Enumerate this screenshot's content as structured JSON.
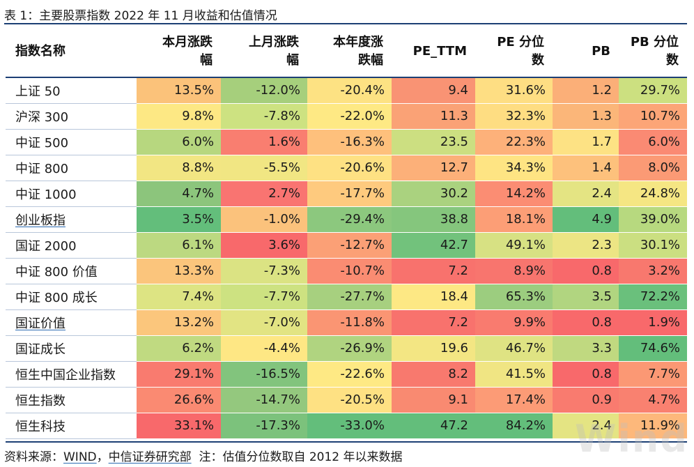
{
  "title": "表 1：主要股票指数 2022 年 11 月收益和估值情况",
  "headers": {
    "name": "指数名称",
    "monthly": [
      "本月涨跌",
      "幅"
    ],
    "last_month": [
      "上月涨跌",
      "幅"
    ],
    "ytd": [
      "本年度涨",
      "跌幅"
    ],
    "pe_ttm": "PE_TTM",
    "pe_pct": [
      "PE 分位",
      "数"
    ],
    "pb": "PB",
    "pb_pct": [
      "PB 分位",
      "数"
    ]
  },
  "rows": [
    {
      "name": "上证 50",
      "link": false,
      "cells": [
        "13.5%",
        "-12.0%",
        "-20.4%",
        "9.4",
        "31.6%",
        "1.2",
        "29.7%"
      ],
      "colors": [
        "#fbc27a",
        "#a6cf7c",
        "#fde283",
        "#f99374",
        "#fede83",
        "#fbaf78",
        "#cce080"
      ]
    },
    {
      "name": "沪深 300",
      "link": false,
      "cells": [
        "9.8%",
        "-7.8%",
        "-22.0%",
        "11.3",
        "32.3%",
        "1.3",
        "10.7%"
      ],
      "colors": [
        "#fde884",
        "#cde281",
        "#fee984",
        "#faa276",
        "#fedd82",
        "#fbb679",
        "#fca577"
      ]
    },
    {
      "name": "中证 500",
      "link": false,
      "cells": [
        "6.0%",
        "1.6%",
        "-16.3%",
        "23.5",
        "22.3%",
        "1.7",
        "6.0%"
      ],
      "colors": [
        "#b7d77f",
        "#f97e70",
        "#fec07c",
        "#ccdf81",
        "#fdb17a",
        "#fde284",
        "#fa8a73"
      ]
    },
    {
      "name": "中证 800",
      "link": false,
      "cells": [
        "8.8%",
        "-5.5%",
        "-20.6%",
        "12.7",
        "34.3%",
        "1.4",
        "8.0%"
      ],
      "colors": [
        "#f2e683",
        "#f1e683",
        "#fee183",
        "#fcb079",
        "#fee483",
        "#fdc17c",
        "#fb9a75"
      ]
    },
    {
      "name": "中证 1000",
      "link": false,
      "cells": [
        "4.7%",
        "2.7%",
        "-17.7%",
        "30.2",
        "14.2%",
        "2.4",
        "24.8%"
      ],
      "colors": [
        "#8cc57c",
        "#f97471",
        "#feca7e",
        "#aad27f",
        "#fb8d73",
        "#e4e483",
        "#f5e683"
      ]
    },
    {
      "name": "创业板指",
      "link": true,
      "cells": [
        "3.5%",
        "-1.0%",
        "-29.4%",
        "38.8",
        "18.1%",
        "4.9",
        "39.0%"
      ],
      "colors": [
        "#63be7b",
        "#fbc27c",
        "#8cc87e",
        "#85c67d",
        "#fc9e76",
        "#63be7b",
        "#b7d97f"
      ]
    },
    {
      "name": "国证 2000",
      "link": false,
      "cells": [
        "6.1%",
        "3.6%",
        "-12.7%",
        "42.7",
        "49.1%",
        "2.3",
        "30.1%"
      ],
      "colors": [
        "#bcd981",
        "#f8696b",
        "#fba076",
        "#72c27c",
        "#d7e183",
        "#ece584",
        "#cbdf81"
      ]
    },
    {
      "name": "中证 800 价值",
      "link": false,
      "cells": [
        "13.3%",
        "-7.3%",
        "-10.7%",
        "7.2",
        "8.9%",
        "0.8",
        "3.2%"
      ],
      "colors": [
        "#fbc57c",
        "#dbe383",
        "#fa8c72",
        "#f8726d",
        "#f8756e",
        "#f8696b",
        "#f8786e"
      ]
    },
    {
      "name": "中证 800 成长",
      "link": false,
      "cells": [
        "7.4%",
        "-7.7%",
        "-27.7%",
        "18.4",
        "65.3%",
        "3.5",
        "72.2%"
      ],
      "colors": [
        "#dde483",
        "#cde281",
        "#a7d07f",
        "#fde884",
        "#9ccd7f",
        "#b1d580",
        "#6ac07c"
      ]
    },
    {
      "name": "国证价值",
      "link": true,
      "cells": [
        "13.2%",
        "-7.0%",
        "-11.8%",
        "7.2",
        "9.9%",
        "0.8",
        "1.9%"
      ],
      "colors": [
        "#fbc67c",
        "#e2e483",
        "#fa9573",
        "#f8726d",
        "#f97b6f",
        "#f8696b",
        "#f8696b"
      ]
    },
    {
      "name": "国证成长",
      "link": false,
      "cells": [
        "6.2%",
        "-4.4%",
        "-26.9%",
        "19.6",
        "46.7%",
        "3.3",
        "74.6%"
      ],
      "colors": [
        "#c0da81",
        "#fee784",
        "#b0d480",
        "#f3e683",
        "#dfe383",
        "#c0d980",
        "#63be7b"
      ]
    },
    {
      "name": "恒生中国企业指数",
      "link": false,
      "cells": [
        "29.1%",
        "-16.5%",
        "-22.6%",
        "8.2",
        "41.5%",
        "0.8",
        "7.7%"
      ],
      "colors": [
        "#f97b6f",
        "#82c47d",
        "#fee984",
        "#f8796e",
        "#f0e583",
        "#f8696b",
        "#fb9874"
      ]
    },
    {
      "name": "恒生指数",
      "link": false,
      "cells": [
        "26.6%",
        "-14.7%",
        "-20.5%",
        "9.1",
        "17.4%",
        "0.9",
        "4.7%"
      ],
      "colors": [
        "#fa8a72",
        "#94c87e",
        "#fee183",
        "#f98a71",
        "#fc9b76",
        "#f97b6f",
        "#f98170"
      ]
    },
    {
      "name": "恒生科技",
      "link": false,
      "cells": [
        "33.1%",
        "-17.3%",
        "-33.0%",
        "47.2",
        "84.2%",
        "2.4",
        "11.9%"
      ],
      "colors": [
        "#f8696b",
        "#7cc27c",
        "#63be7b",
        "#63be7b",
        "#63be7b",
        "#e4e483",
        "#fdb87b"
      ]
    }
  ],
  "source": {
    "prefix": "资料来源：",
    "wind": "WIND",
    "sep": "，",
    "citic": "中信证券研究部",
    "note": "  注：估值分位数取自 2012 年以来数据"
  },
  "watermark": "Wind"
}
